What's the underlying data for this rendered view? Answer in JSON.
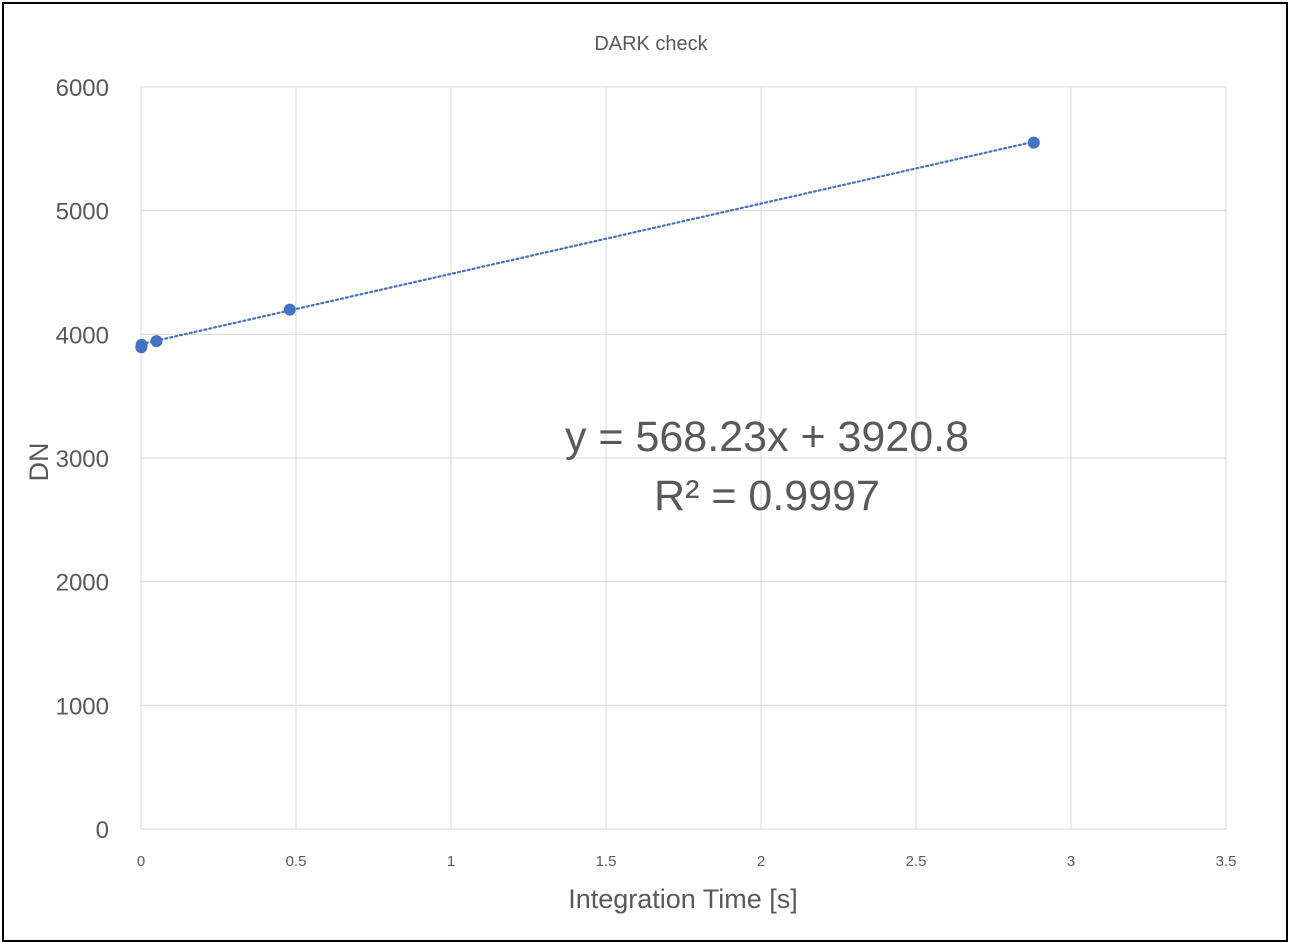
{
  "chart_data": {
    "type": "scatter",
    "title": "DARK check",
    "xlabel": "Integration Time [s]",
    "ylabel": "DN",
    "xlim": [
      0,
      3.5
    ],
    "ylim": [
      0,
      6000
    ],
    "x_ticks": [
      "0",
      "0.5",
      "1",
      "1.5",
      "2",
      "2.5",
      "3",
      "3.5"
    ],
    "y_ticks": [
      "0",
      "1000",
      "2000",
      "3000",
      "4000",
      "5000",
      "6000"
    ],
    "x_tick_values": [
      0,
      0.5,
      1,
      1.5,
      2,
      2.5,
      3,
      3.5
    ],
    "y_tick_values": [
      0,
      1000,
      2000,
      3000,
      4000,
      5000,
      6000
    ],
    "grid": true,
    "legend": "none",
    "series": [
      {
        "x": [
          0.001,
          0.002,
          0.05,
          0.48,
          2.88
        ],
        "y": [
          3895,
          3915,
          3945,
          4200,
          5550
        ],
        "color": "#4472c4"
      }
    ],
    "trendline": {
      "type": "linear",
      "slope": 568.23,
      "intercept": 3920.8,
      "x_range": [
        0,
        2.88
      ],
      "color": "#4472c4",
      "style": "dotted"
    },
    "annotations": {
      "equation": "y = 568.23x + 3920.8",
      "r_squared": "R² = 0.9997"
    }
  }
}
